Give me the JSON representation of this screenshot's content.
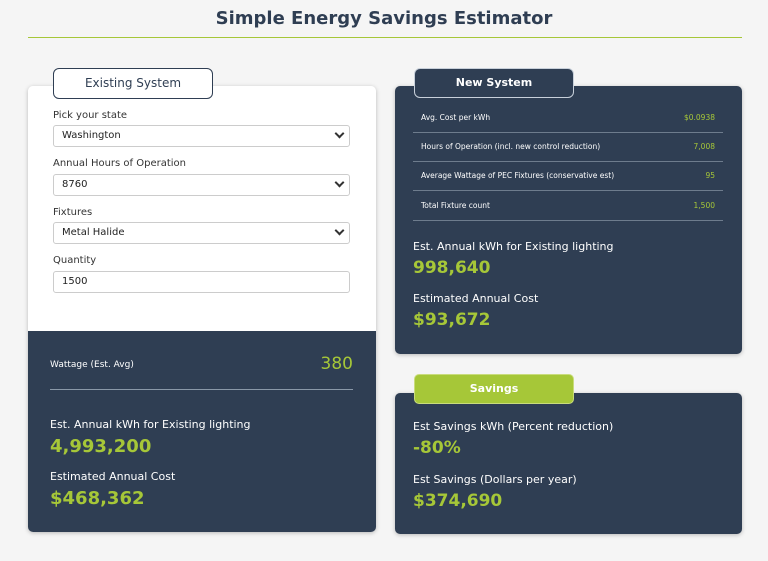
{
  "page": {
    "title": "Simple Energy Savings Estimator"
  },
  "existing": {
    "tab_label": "Existing System",
    "state": {
      "label": "Pick your state",
      "value": "Washington"
    },
    "hours": {
      "label": "Annual Hours of Operation",
      "value": "8760"
    },
    "fixtures": {
      "label": "Fixtures",
      "value": "Metal Halide"
    },
    "quantity": {
      "label": "Quantity",
      "value": "1500"
    },
    "wattage": {
      "label": "Wattage (Est. Avg)",
      "value": "380"
    },
    "annual_kwh": {
      "label": "Est. Annual kWh for Existing lighting",
      "value": "4,993,200"
    },
    "annual_cost": {
      "label": "Estimated Annual Cost",
      "value": "$468,362"
    }
  },
  "new_system": {
    "tab_label": "New System",
    "specs": [
      {
        "label": "Avg. Cost per kWh",
        "value": "$0.0938"
      },
      {
        "label": "Hours of Operation (incl. new control reduction)",
        "value": "7,008"
      },
      {
        "label": "Average Wattage of PEC Fixtures (conservative est)",
        "value": "95"
      },
      {
        "label": "Total Fixture count",
        "value": "1,500"
      }
    ],
    "annual_kwh": {
      "label": "Est. Annual kWh for Existing lighting",
      "value": "998,640"
    },
    "annual_cost": {
      "label": "Estimated Annual Cost",
      "value": "$93,672"
    }
  },
  "savings": {
    "tab_label": "Savings",
    "kwh": {
      "label": "Est Savings kWh (Percent reduction)",
      "value": "-80%"
    },
    "dollars": {
      "label": "Est Savings (Dollars per year)",
      "value": "$374,690"
    }
  },
  "colors": {
    "navy": "#2f3e53",
    "green": "#a6c738",
    "background": "#f5f5f5"
  }
}
